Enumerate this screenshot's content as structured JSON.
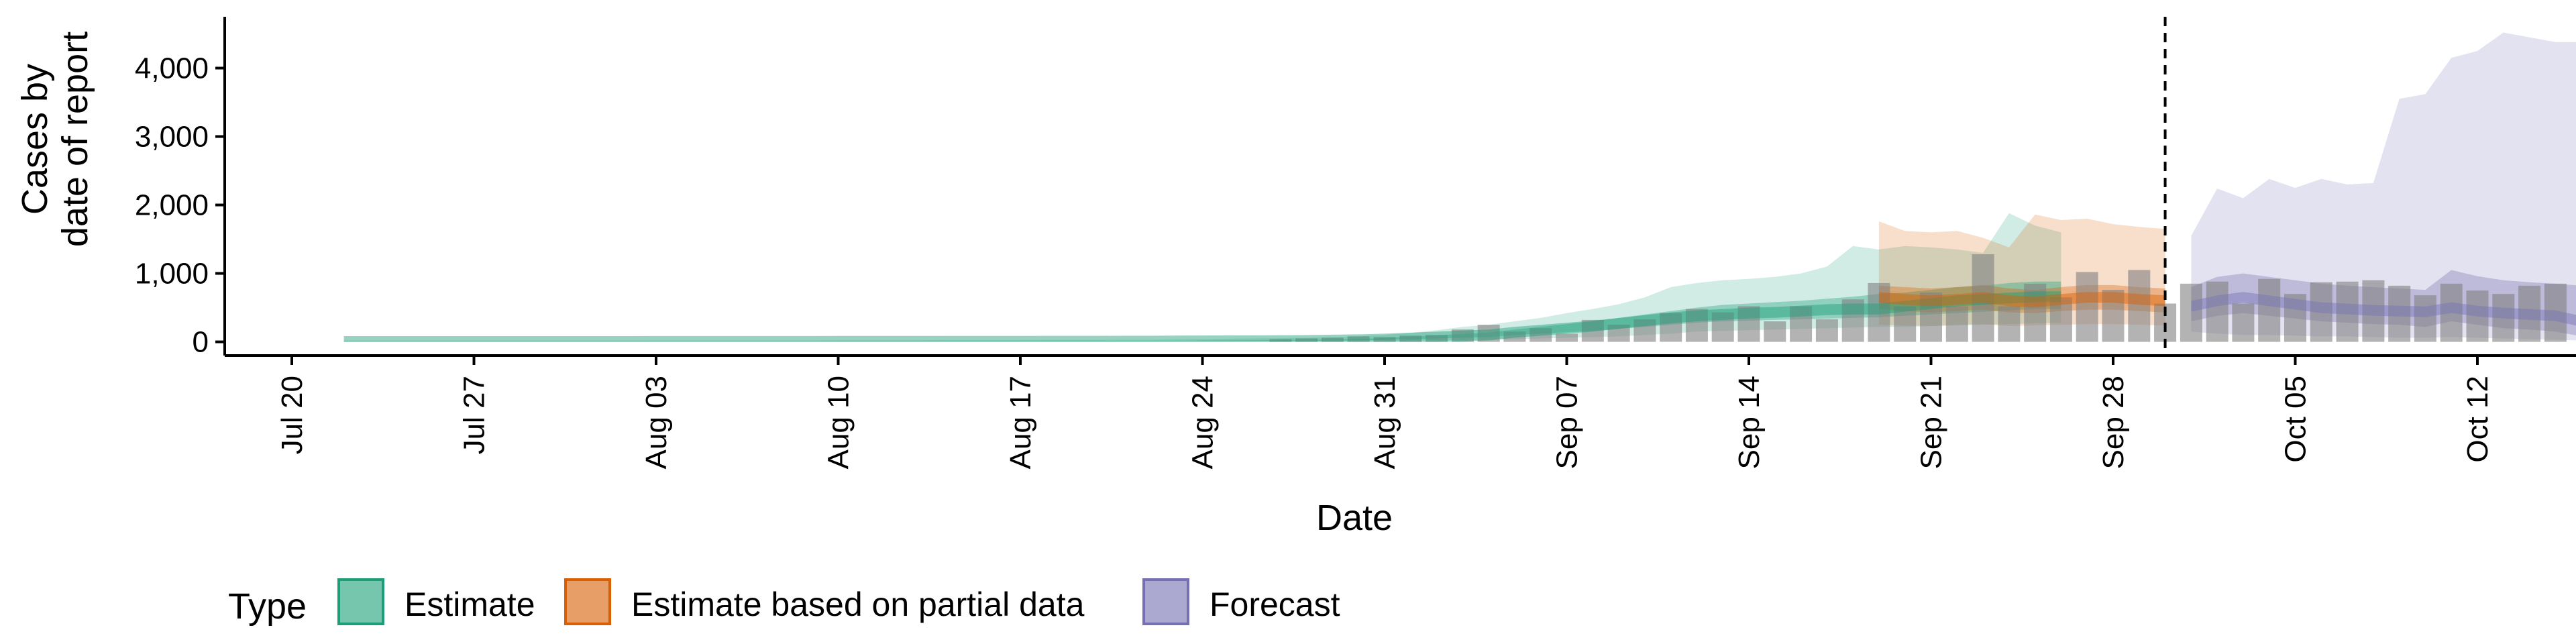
{
  "chart_data": {
    "type": "area",
    "xlabel": "Date",
    "ylabel_lines": [
      "Cases by",
      "date of report"
    ],
    "x_start": "2020-07-20",
    "x_end": "2020-10-18",
    "ylim": [
      -200,
      4750
    ],
    "yticks": [
      0,
      1000,
      2000,
      3000,
      4000
    ],
    "ytick_labels": [
      "0",
      "1,000",
      "2,000",
      "3,000",
      "4,000"
    ],
    "xticks": [
      "2020-07-20",
      "2020-07-27",
      "2020-08-03",
      "2020-08-10",
      "2020-08-17",
      "2020-08-24",
      "2020-08-31",
      "2020-09-07",
      "2020-09-14",
      "2020-09-21",
      "2020-09-28",
      "2020-10-05",
      "2020-10-12"
    ],
    "xtick_labels": [
      "Jul 20",
      "Jul 27",
      "Aug 03",
      "Aug 10",
      "Aug 17",
      "Aug 24",
      "Aug 31",
      "Sep 07",
      "Sep 14",
      "Sep 21",
      "Sep 28",
      "Oct 05",
      "Oct 12"
    ],
    "forecast_line_date": "2020-09-30",
    "grid": false,
    "legend": {
      "title": "Type",
      "placement": "bottom",
      "items": [
        {
          "label": "Estimate",
          "color": "#1b9e77"
        },
        {
          "label": "Estimate based on partial data",
          "color": "#d95f02"
        },
        {
          "label": "Forecast",
          "color": "#7570b3"
        }
      ]
    },
    "colors": {
      "Estimate": "#1b9e77",
      "Estimate based on partial data": "#d95f02",
      "Forecast": "#7570b3",
      "reported_bars": "#808080"
    },
    "reported_cases": {
      "start_date": "2020-08-27",
      "values": [
        40,
        50,
        60,
        80,
        70,
        90,
        100,
        180,
        250,
        150,
        200,
        120,
        320,
        250,
        330,
        420,
        480,
        430,
        520,
        300,
        520,
        330,
        620,
        860,
        520,
        720,
        520,
        1280,
        520,
        850,
        650,
        1020,
        760,
        1050,
        560,
        850,
        880,
        560,
        920,
        700,
        870,
        880,
        900,
        820,
        680,
        850,
        750,
        700,
        820,
        850
      ]
    },
    "series": [
      {
        "name": "Estimate",
        "start_date": "2020-07-22",
        "median": [
          5,
          5,
          5,
          5,
          5,
          5,
          5,
          5,
          5,
          5,
          5,
          5,
          6,
          6,
          6,
          6,
          6,
          6,
          6,
          7,
          7,
          7,
          7,
          8,
          8,
          8,
          8,
          9,
          9,
          9,
          10,
          10,
          12,
          14,
          15,
          16,
          18,
          20,
          25,
          30,
          40,
          55,
          70,
          85,
          100,
          140,
          170,
          200,
          230,
          270,
          310,
          350,
          380,
          400,
          420,
          430,
          450,
          470,
          480,
          480,
          520,
          560,
          600,
          620,
          640,
          660,
          660
        ],
        "ci50": [
          [
            3,
            8
          ],
          [
            3,
            8
          ],
          [
            3,
            8
          ],
          [
            3,
            8
          ],
          [
            3,
            8
          ],
          [
            3,
            8
          ],
          [
            3,
            8
          ],
          [
            3,
            8
          ],
          [
            3,
            8
          ],
          [
            3,
            8
          ],
          [
            3,
            8
          ],
          [
            3,
            8
          ],
          [
            4,
            9
          ],
          [
            4,
            9
          ],
          [
            4,
            9
          ],
          [
            4,
            9
          ],
          [
            4,
            9
          ],
          [
            4,
            9
          ],
          [
            4,
            9
          ],
          [
            4,
            10
          ],
          [
            4,
            10
          ],
          [
            4,
            10
          ],
          [
            4,
            10
          ],
          [
            5,
            12
          ],
          [
            5,
            12
          ],
          [
            5,
            12
          ],
          [
            5,
            12
          ],
          [
            5,
            13
          ],
          [
            5,
            13
          ],
          [
            5,
            13
          ],
          [
            6,
            15
          ],
          [
            6,
            15
          ],
          [
            8,
            17
          ],
          [
            9,
            20
          ],
          [
            10,
            22
          ],
          [
            11,
            24
          ],
          [
            12,
            27
          ],
          [
            14,
            30
          ],
          [
            18,
            35
          ],
          [
            22,
            42
          ],
          [
            28,
            55
          ],
          [
            40,
            75
          ],
          [
            50,
            95
          ],
          [
            60,
            115
          ],
          [
            70,
            135
          ],
          [
            100,
            180
          ],
          [
            120,
            220
          ],
          [
            140,
            260
          ],
          [
            160,
            300
          ],
          [
            190,
            350
          ],
          [
            220,
            400
          ],
          [
            250,
            450
          ],
          [
            280,
            500
          ],
          [
            300,
            540
          ],
          [
            310,
            560
          ],
          [
            320,
            580
          ],
          [
            330,
            600
          ],
          [
            340,
            630
          ],
          [
            350,
            660
          ],
          [
            360,
            700
          ],
          [
            380,
            720
          ],
          [
            400,
            760
          ],
          [
            420,
            800
          ],
          [
            440,
            820
          ],
          [
            460,
            860
          ],
          [
            480,
            880
          ],
          [
            480,
            880
          ]
        ],
        "ci90": [
          [
            1,
            20
          ],
          [
            1,
            20
          ],
          [
            1,
            20
          ],
          [
            1,
            20
          ],
          [
            1,
            20
          ],
          [
            1,
            20
          ],
          [
            1,
            20
          ],
          [
            1,
            20
          ],
          [
            1,
            20
          ],
          [
            1,
            20
          ],
          [
            1,
            20
          ],
          [
            1,
            20
          ],
          [
            2,
            22
          ],
          [
            2,
            22
          ],
          [
            2,
            22
          ],
          [
            2,
            22
          ],
          [
            2,
            22
          ],
          [
            2,
            22
          ],
          [
            2,
            22
          ],
          [
            2,
            24
          ],
          [
            2,
            24
          ],
          [
            2,
            24
          ],
          [
            2,
            24
          ],
          [
            2,
            26
          ],
          [
            2,
            26
          ],
          [
            2,
            26
          ],
          [
            2,
            26
          ],
          [
            2,
            28
          ],
          [
            2,
            28
          ],
          [
            2,
            28
          ],
          [
            3,
            30
          ],
          [
            3,
            30
          ],
          [
            3,
            35
          ],
          [
            4,
            40
          ],
          [
            4,
            45
          ],
          [
            5,
            50
          ],
          [
            5,
            55
          ],
          [
            6,
            60
          ],
          [
            8,
            70
          ],
          [
            10,
            80
          ],
          [
            12,
            100
          ],
          [
            15,
            130
          ],
          [
            20,
            170
          ],
          [
            25,
            220
          ],
          [
            30,
            250
          ],
          [
            40,
            300
          ],
          [
            50,
            350
          ],
          [
            60,
            420
          ],
          [
            70,
            480
          ],
          [
            80,
            550
          ],
          [
            100,
            650
          ],
          [
            120,
            800
          ],
          [
            150,
            860
          ],
          [
            160,
            900
          ],
          [
            170,
            920
          ],
          [
            180,
            950
          ],
          [
            190,
            1000
          ],
          [
            200,
            1100
          ],
          [
            210,
            1400
          ],
          [
            220,
            1350
          ],
          [
            220,
            1400
          ],
          [
            230,
            1380
          ],
          [
            240,
            1350
          ],
          [
            250,
            1300
          ],
          [
            260,
            1880
          ],
          [
            270,
            1700
          ],
          [
            280,
            1600
          ]
        ]
      },
      {
        "name": "Estimate based on partial data",
        "start_date": "2020-09-19",
        "median": [
          650,
          620,
          600,
          620,
          650,
          600,
          580,
          620,
          650,
          650,
          620,
          600
        ],
        "ci50": [
          [
            480,
            820
          ],
          [
            450,
            800
          ],
          [
            430,
            780
          ],
          [
            450,
            800
          ],
          [
            470,
            830
          ],
          [
            430,
            780
          ],
          [
            420,
            760
          ],
          [
            450,
            800
          ],
          [
            470,
            830
          ],
          [
            470,
            830
          ],
          [
            450,
            800
          ],
          [
            430,
            780
          ]
        ],
        "ci90": [
          [
            250,
            1760
          ],
          [
            240,
            1620
          ],
          [
            230,
            1600
          ],
          [
            250,
            1620
          ],
          [
            260,
            1520
          ],
          [
            230,
            1380
          ],
          [
            240,
            1860
          ],
          [
            250,
            1780
          ],
          [
            260,
            1800
          ],
          [
            260,
            1720
          ],
          [
            250,
            1680
          ],
          [
            240,
            1650
          ]
        ]
      },
      {
        "name": "Forecast",
        "start_date": "2020-10-01",
        "median": [
          520,
          600,
          650,
          600,
          550,
          500,
          480,
          460,
          450,
          440,
          500,
          450,
          420,
          400,
          380,
          300
        ],
        "ci50": [
          [
            300,
            800
          ],
          [
            380,
            950
          ],
          [
            420,
            1000
          ],
          [
            380,
            950
          ],
          [
            340,
            900
          ],
          [
            300,
            850
          ],
          [
            280,
            820
          ],
          [
            260,
            800
          ],
          [
            250,
            780
          ],
          [
            220,
            760
          ],
          [
            300,
            1050
          ],
          [
            250,
            960
          ],
          [
            200,
            900
          ],
          [
            180,
            870
          ],
          [
            150,
            850
          ],
          [
            80,
            820
          ]
        ],
        "ci90": [
          [
            150,
            1550
          ],
          [
            120,
            2240
          ],
          [
            100,
            2100
          ],
          [
            100,
            2380
          ],
          [
            90,
            2250
          ],
          [
            80,
            2380
          ],
          [
            80,
            2300
          ],
          [
            70,
            2320
          ],
          [
            60,
            3550
          ],
          [
            60,
            3620
          ],
          [
            70,
            4150
          ],
          [
            60,
            4250
          ],
          [
            50,
            4520
          ],
          [
            40,
            4450
          ],
          [
            30,
            4380
          ],
          [
            20,
            4380
          ]
        ]
      }
    ]
  }
}
